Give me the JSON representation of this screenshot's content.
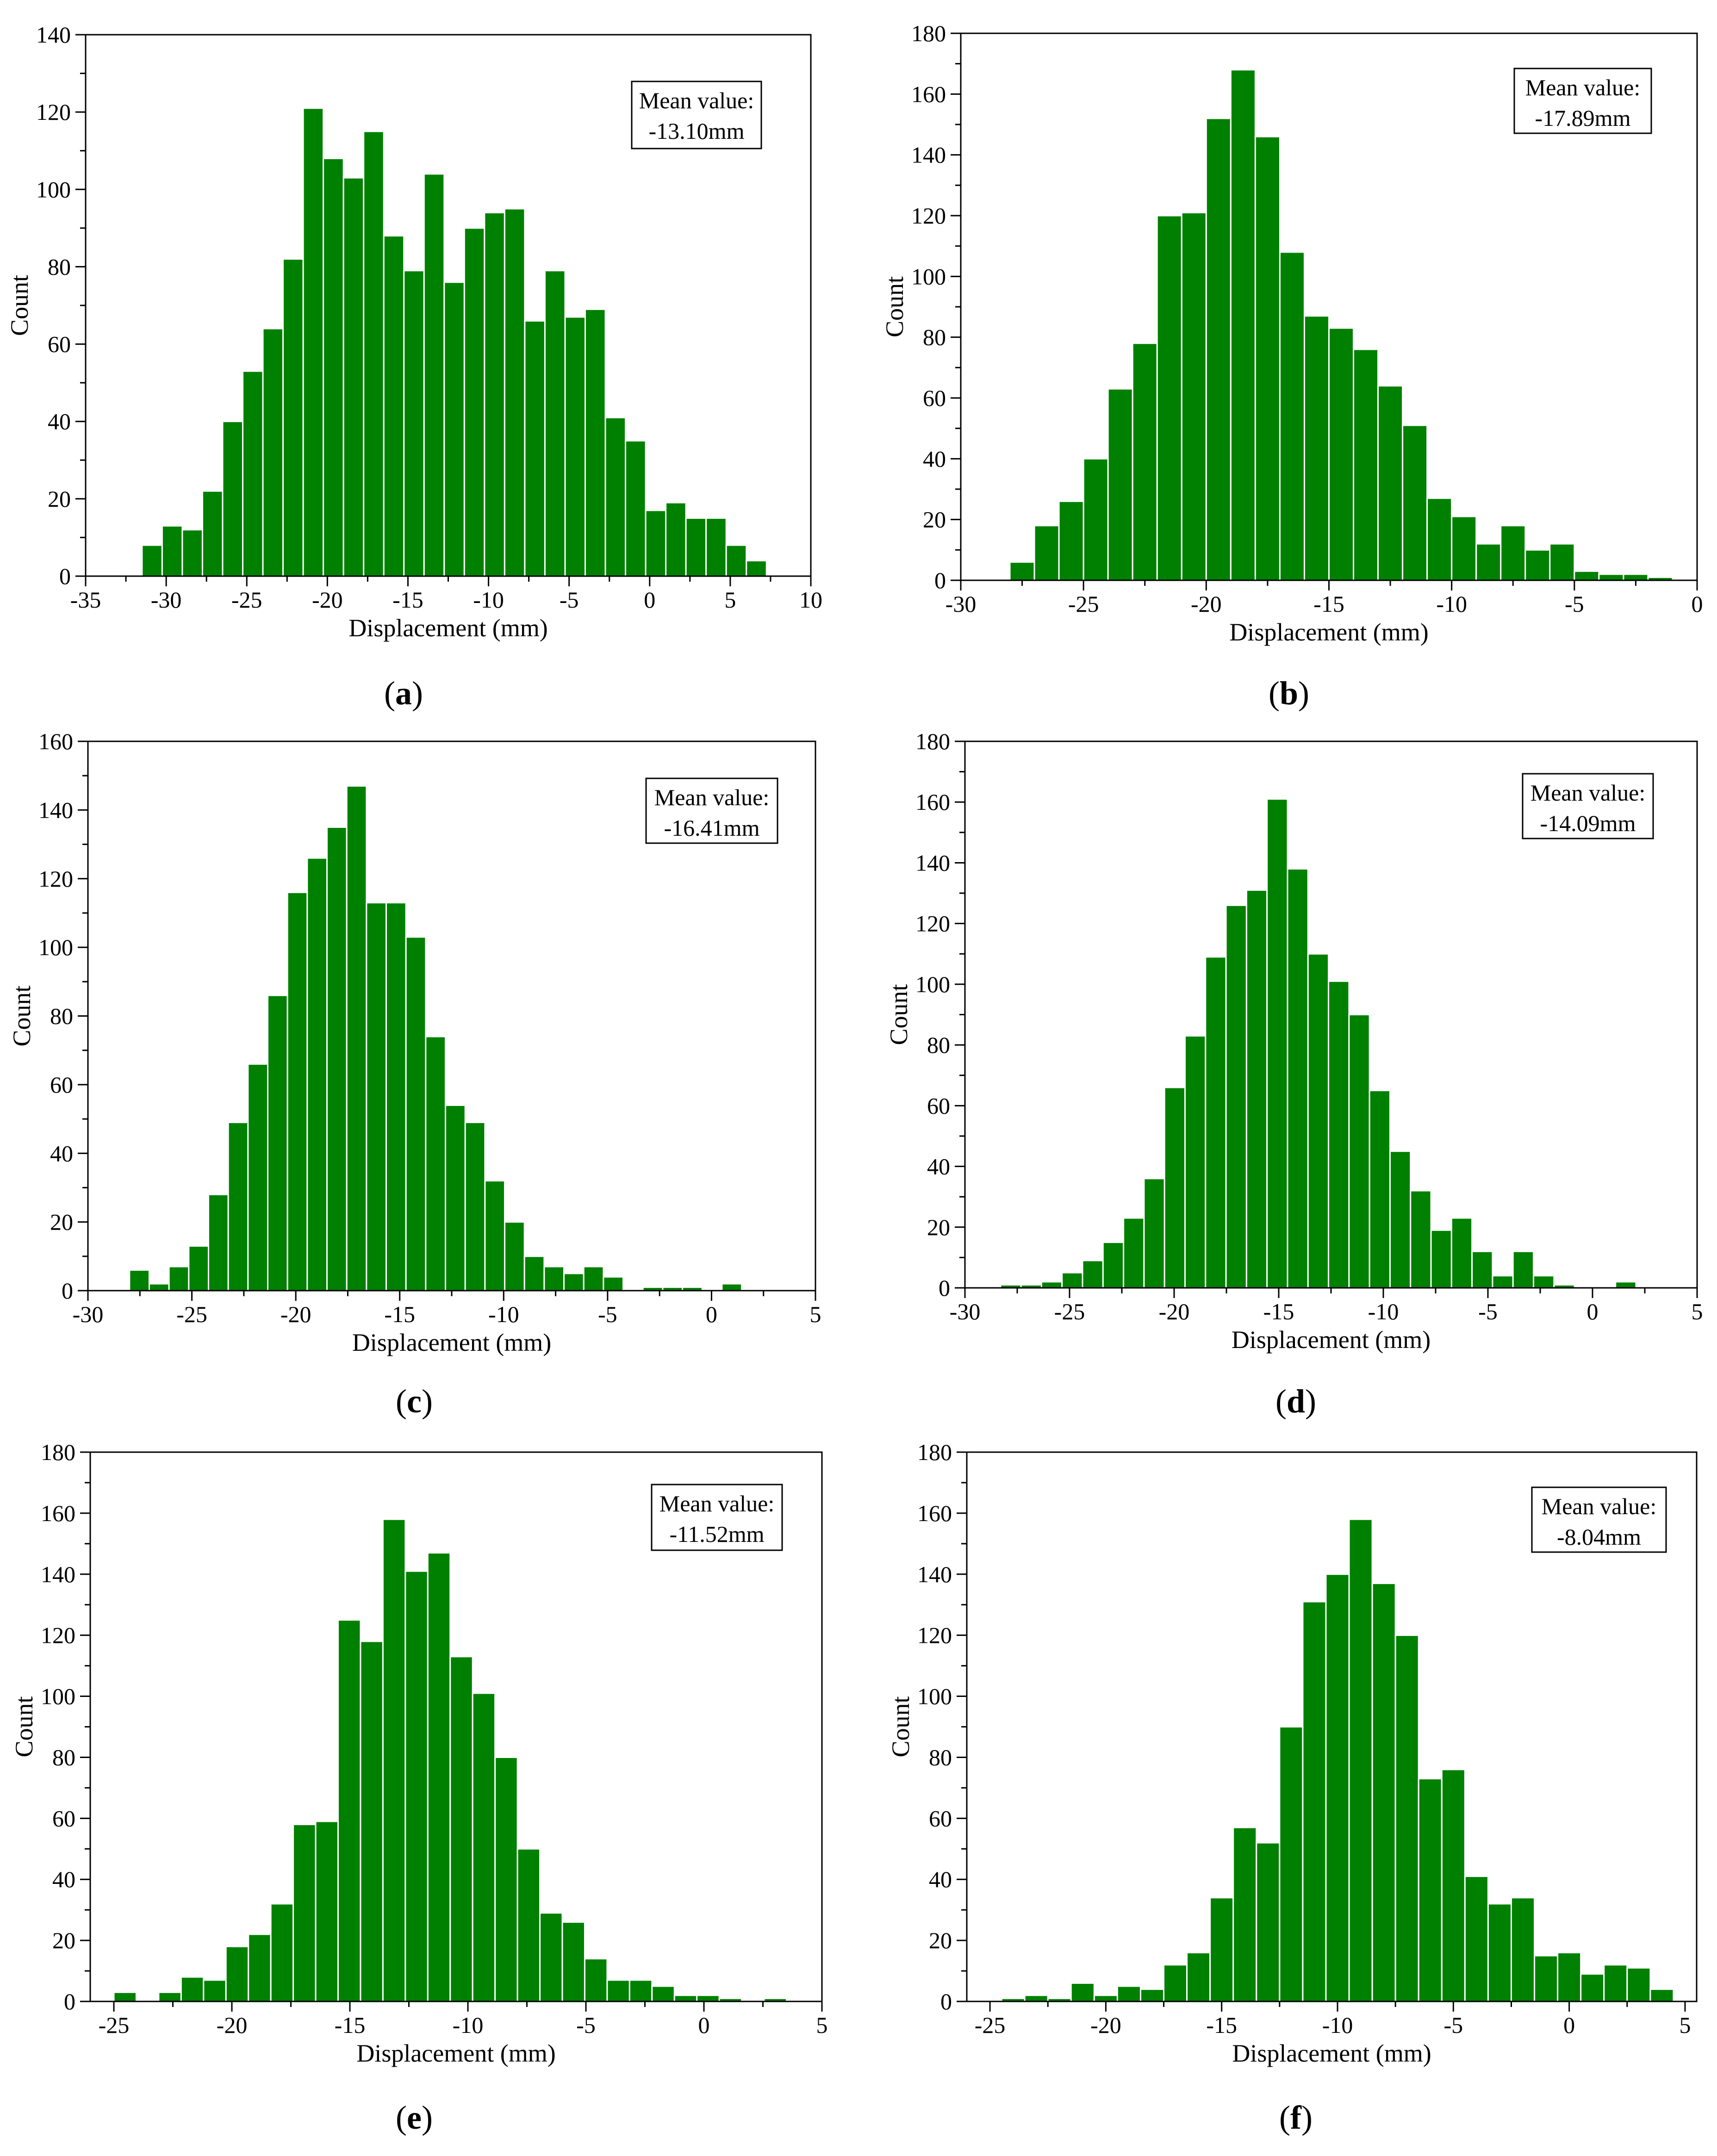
{
  "chart_data": [
    {
      "type": "bar",
      "panel": "a",
      "caption": "(a)",
      "title": "",
      "xlabel": "Displacement (mm)",
      "ylabel": "Count",
      "xlim": [
        -35,
        10
      ],
      "ylim": [
        0,
        140
      ],
      "xticks": [
        -35,
        -30,
        -25,
        -20,
        -15,
        -10,
        -5,
        0,
        5,
        10
      ],
      "yticks": [
        0,
        20,
        40,
        60,
        80,
        100,
        120,
        140
      ],
      "bin_width": 1.25,
      "bin_start": -31.5,
      "values": [
        8,
        13,
        12,
        22,
        40,
        53,
        64,
        82,
        121,
        108,
        103,
        115,
        88,
        79,
        104,
        76,
        90,
        94,
        95,
        66,
        79,
        67,
        69,
        41,
        35,
        17,
        19,
        15,
        15,
        8,
        4
      ],
      "annotation": {
        "line1": "Mean value:",
        "line2": "-13.10mm"
      },
      "grid": false,
      "color": "#008000"
    },
    {
      "type": "bar",
      "panel": "b",
      "caption": "(b)",
      "title": "",
      "xlabel": "Displacement (mm)",
      "ylabel": "Count",
      "xlim": [
        -30,
        0
      ],
      "ylim": [
        0,
        180
      ],
      "xticks": [
        -30,
        -25,
        -20,
        -15,
        -10,
        -5,
        0
      ],
      "yticks": [
        0,
        20,
        40,
        60,
        80,
        100,
        120,
        140,
        160,
        180
      ],
      "bin_width": 1.0,
      "bin_start": -28,
      "values": [
        6,
        18,
        26,
        40,
        63,
        78,
        120,
        121,
        152,
        168,
        146,
        108,
        87,
        83,
        76,
        64,
        51,
        27,
        21,
        12,
        18,
        10,
        12,
        3,
        2,
        2,
        1
      ],
      "annotation": {
        "line1": "Mean value:",
        "line2": "-17.89mm"
      },
      "grid": false,
      "color": "#008000"
    },
    {
      "type": "bar",
      "panel": "c",
      "caption": "(c)",
      "title": "",
      "xlabel": "Displacement (mm)",
      "ylabel": "Count",
      "xlim": [
        -30,
        5
      ],
      "ylim": [
        0,
        160
      ],
      "xticks": [
        -30,
        -25,
        -20,
        -15,
        -10,
        -5,
        0,
        5
      ],
      "yticks": [
        0,
        20,
        40,
        60,
        80,
        100,
        120,
        140,
        160
      ],
      "bin_width": 0.95,
      "bin_start": -28.0,
      "values": [
        6,
        2,
        7,
        13,
        28,
        49,
        66,
        86,
        116,
        126,
        135,
        147,
        113,
        113,
        103,
        74,
        54,
        49,
        32,
        20,
        10,
        7,
        5,
        7,
        4,
        0,
        1,
        1,
        1,
        0,
        2
      ],
      "annotation": {
        "line1": "Mean value:",
        "line2": "-16.41mm"
      },
      "grid": false,
      "color": "#008000"
    },
    {
      "type": "bar",
      "panel": "d",
      "caption": "(d)",
      "title": "",
      "xlabel": "Displacement (mm)",
      "ylabel": "Count",
      "xlim": [
        -30,
        5
      ],
      "ylim": [
        0,
        180
      ],
      "xticks": [
        -30,
        -25,
        -20,
        -15,
        -10,
        -5,
        0,
        5
      ],
      "yticks": [
        0,
        20,
        40,
        60,
        80,
        100,
        120,
        140,
        160,
        180
      ],
      "bin_width": 0.98,
      "bin_start": -28.3,
      "values": [
        1,
        1,
        2,
        5,
        9,
        15,
        23,
        36,
        66,
        83,
        109,
        126,
        131,
        161,
        138,
        110,
        101,
        90,
        65,
        45,
        32,
        19,
        23,
        12,
        4,
        12,
        4,
        1,
        0,
        0,
        2
      ],
      "annotation": {
        "line1": "Mean value:",
        "line2": "-14.09mm"
      },
      "grid": false,
      "color": "#008000"
    },
    {
      "type": "bar",
      "panel": "e",
      "caption": "(e)",
      "title": "",
      "xlabel": "Displacement (mm)",
      "ylabel": "Count",
      "xlim": [
        -26,
        5
      ],
      "ylim": [
        0,
        180
      ],
      "xticks": [
        -25,
        -20,
        -15,
        -10,
        -5,
        0,
        5
      ],
      "yticks": [
        0,
        20,
        40,
        60,
        80,
        100,
        120,
        140,
        160,
        180
      ],
      "bin_width": 0.95,
      "bin_start": -25.0,
      "values": [
        3,
        0,
        3,
        8,
        7,
        18,
        22,
        32,
        58,
        59,
        125,
        118,
        158,
        141,
        147,
        113,
        101,
        80,
        50,
        29,
        26,
        14,
        7,
        7,
        5,
        2,
        2,
        1,
        0,
        1
      ],
      "annotation": {
        "line1": "Mean value:",
        "line2": "-11.52mm"
      },
      "grid": false,
      "color": "#008000"
    },
    {
      "type": "bar",
      "panel": "f",
      "caption": "(f)",
      "title": "",
      "xlabel": "Displacement (mm)",
      "ylabel": "Count",
      "xlim": [
        -26,
        5.5
      ],
      "ylim": [
        0,
        180
      ],
      "xticks": [
        -25,
        -20,
        -15,
        -10,
        -5,
        0,
        5
      ],
      "yticks": [
        0,
        20,
        40,
        60,
        80,
        100,
        120,
        140,
        160,
        180
      ],
      "bin_width": 1.0,
      "bin_start": -24.5,
      "values": [
        1,
        2,
        1,
        6,
        2,
        5,
        4,
        12,
        16,
        34,
        57,
        52,
        90,
        131,
        140,
        158,
        137,
        120,
        73,
        76,
        41,
        32,
        34,
        15,
        16,
        9,
        12,
        11,
        4
      ],
      "annotation": {
        "line1": "Mean value:",
        "line2": "-8.04mm"
      },
      "grid": false,
      "color": "#008000"
    }
  ]
}
